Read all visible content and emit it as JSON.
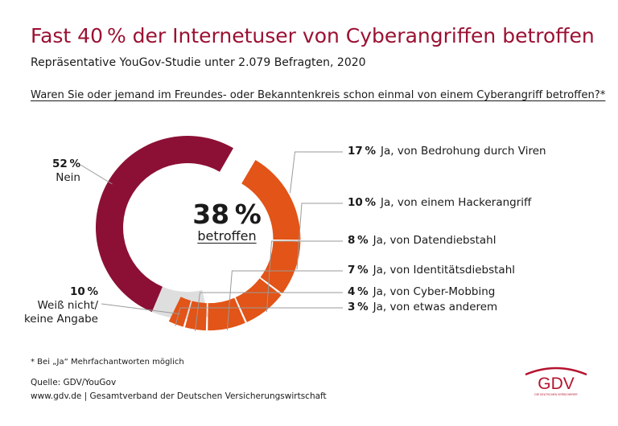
{
  "title": "Fast 40 % der Internetuser von Cyberangriffen betroffen",
  "subtitle": "Repräsentative YouGov-Studie unter 2.079 Befragten, 2020",
  "question": "Waren Sie oder jemand im Freundes- oder Bekanntenkreis schon einmal von einem Cyberangriff betroffen?*",
  "center": {
    "value": "38 %",
    "label": "betroffen"
  },
  "chart_data": {
    "type": "pie",
    "variant": "donut",
    "unit": "%",
    "slices": [
      {
        "pct_label": "52 %",
        "label": "Nein",
        "value": 52,
        "color": "#8c1035"
      },
      {
        "pct_label": "10 %",
        "label": "Weiß nicht/ keine Angabe",
        "value": 10,
        "color": "#dedede"
      },
      {
        "pct_label": "17 %",
        "label": "Ja, von Bedrohung durch Viren",
        "value": 17,
        "color": "#e25417"
      },
      {
        "pct_label": "10 %",
        "label": "Ja, von einem Hackerangriff",
        "value": 10,
        "color": "#e25417"
      },
      {
        "pct_label": "8 %",
        "label": "Ja, von Datendiebstahl",
        "value": 8,
        "color": "#e25417"
      },
      {
        "pct_label": "7 %",
        "label": "Ja, von Identitätsdiebstahl",
        "value": 7,
        "color": "#e25417"
      },
      {
        "pct_label": "4 %",
        "label": "Ja, von Cyber-Mobbing",
        "value": 4,
        "color": "#e25417"
      },
      {
        "pct_label": "3 %",
        "label": "Ja, von etwas anderem",
        "value": 3,
        "color": "#e25417"
      }
    ]
  },
  "left_labels": {
    "nein": {
      "pct": "52 %",
      "text": "Nein"
    },
    "weiss": {
      "pct": "10 %",
      "line1": "Weiß nicht/",
      "line2": "keine Angabe"
    }
  },
  "footnote": "* Bei „Ja“ Mehrfachantworten möglich",
  "source": {
    "line1": "Quelle: GDV/YouGov",
    "line2": "www.gdv.de | Gesamtverband der Deutschen Versicherungswirtschaft"
  },
  "logo": {
    "text": "GDV",
    "tagline": "DIE DEUTSCHEN VERSICHERER",
    "color": "#b5122e"
  }
}
